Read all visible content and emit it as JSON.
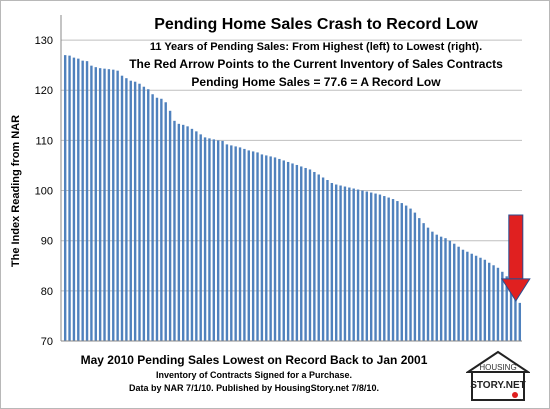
{
  "chart_data": {
    "type": "bar",
    "title": "Pending Home Sales Crash to Record Low",
    "subtitle_lines": [
      "11 Years of Pending Sales: From Highest (left) to Lowest (right).",
      "The Red Arrow Points to the Current Inventory  of Sales Contracts",
      "Pending Home Sales = 77.6 = A Record Low"
    ],
    "ylabel": "The Index Reading from NAR",
    "xlabel": "",
    "ylim": [
      70,
      135
    ],
    "yticks": [
      70,
      80,
      90,
      100,
      110,
      120,
      130
    ],
    "grid": true,
    "legend": "none",
    "bar_color": "#4f81bd",
    "values": [
      127.0,
      126.9,
      126.5,
      126.3,
      125.9,
      125.8,
      124.9,
      124.6,
      124.4,
      124.3,
      124.2,
      124.1,
      123.9,
      122.9,
      122.4,
      121.9,
      121.7,
      121.3,
      120.7,
      120.2,
      119.2,
      118.5,
      118.3,
      117.6,
      115.9,
      113.9,
      113.3,
      113.1,
      112.8,
      112.3,
      111.8,
      111.2,
      110.6,
      110.4,
      110.2,
      110.0,
      109.9,
      109.2,
      109.0,
      108.8,
      108.6,
      108.3,
      108.0,
      107.8,
      107.6,
      107.2,
      107.0,
      106.8,
      106.6,
      106.3,
      106.0,
      105.7,
      105.4,
      105.1,
      104.8,
      104.5,
      104.2,
      103.7,
      103.2,
      102.6,
      102.1,
      101.5,
      101.2,
      101.0,
      100.8,
      100.6,
      100.4,
      100.2,
      100.0,
      99.8,
      99.6,
      99.4,
      99.2,
      98.9,
      98.6,
      98.3,
      97.9,
      97.5,
      97.0,
      96.4,
      95.6,
      94.5,
      93.5,
      92.6,
      91.8,
      91.2,
      90.8,
      90.5,
      90.0,
      89.4,
      88.8,
      88.2,
      87.8,
      87.4,
      87.0,
      86.6,
      86.2,
      85.6,
      85.1,
      84.6,
      83.8,
      82.9,
      81.9,
      80.6,
      77.6
    ],
    "highlight_value": 77.6,
    "arrow_color": "#e02020",
    "footer_title": "May 2010 Pending Sales Lowest on Record Back to Jan 2001",
    "footer_notes": [
      "Inventory of Contracts Signed for a Purchase.",
      "Data by NAR 7/1/10. Published by HousingStory.net 7/8/10."
    ],
    "logo_lines": [
      "HOUSING",
      "STORY.NET"
    ]
  }
}
